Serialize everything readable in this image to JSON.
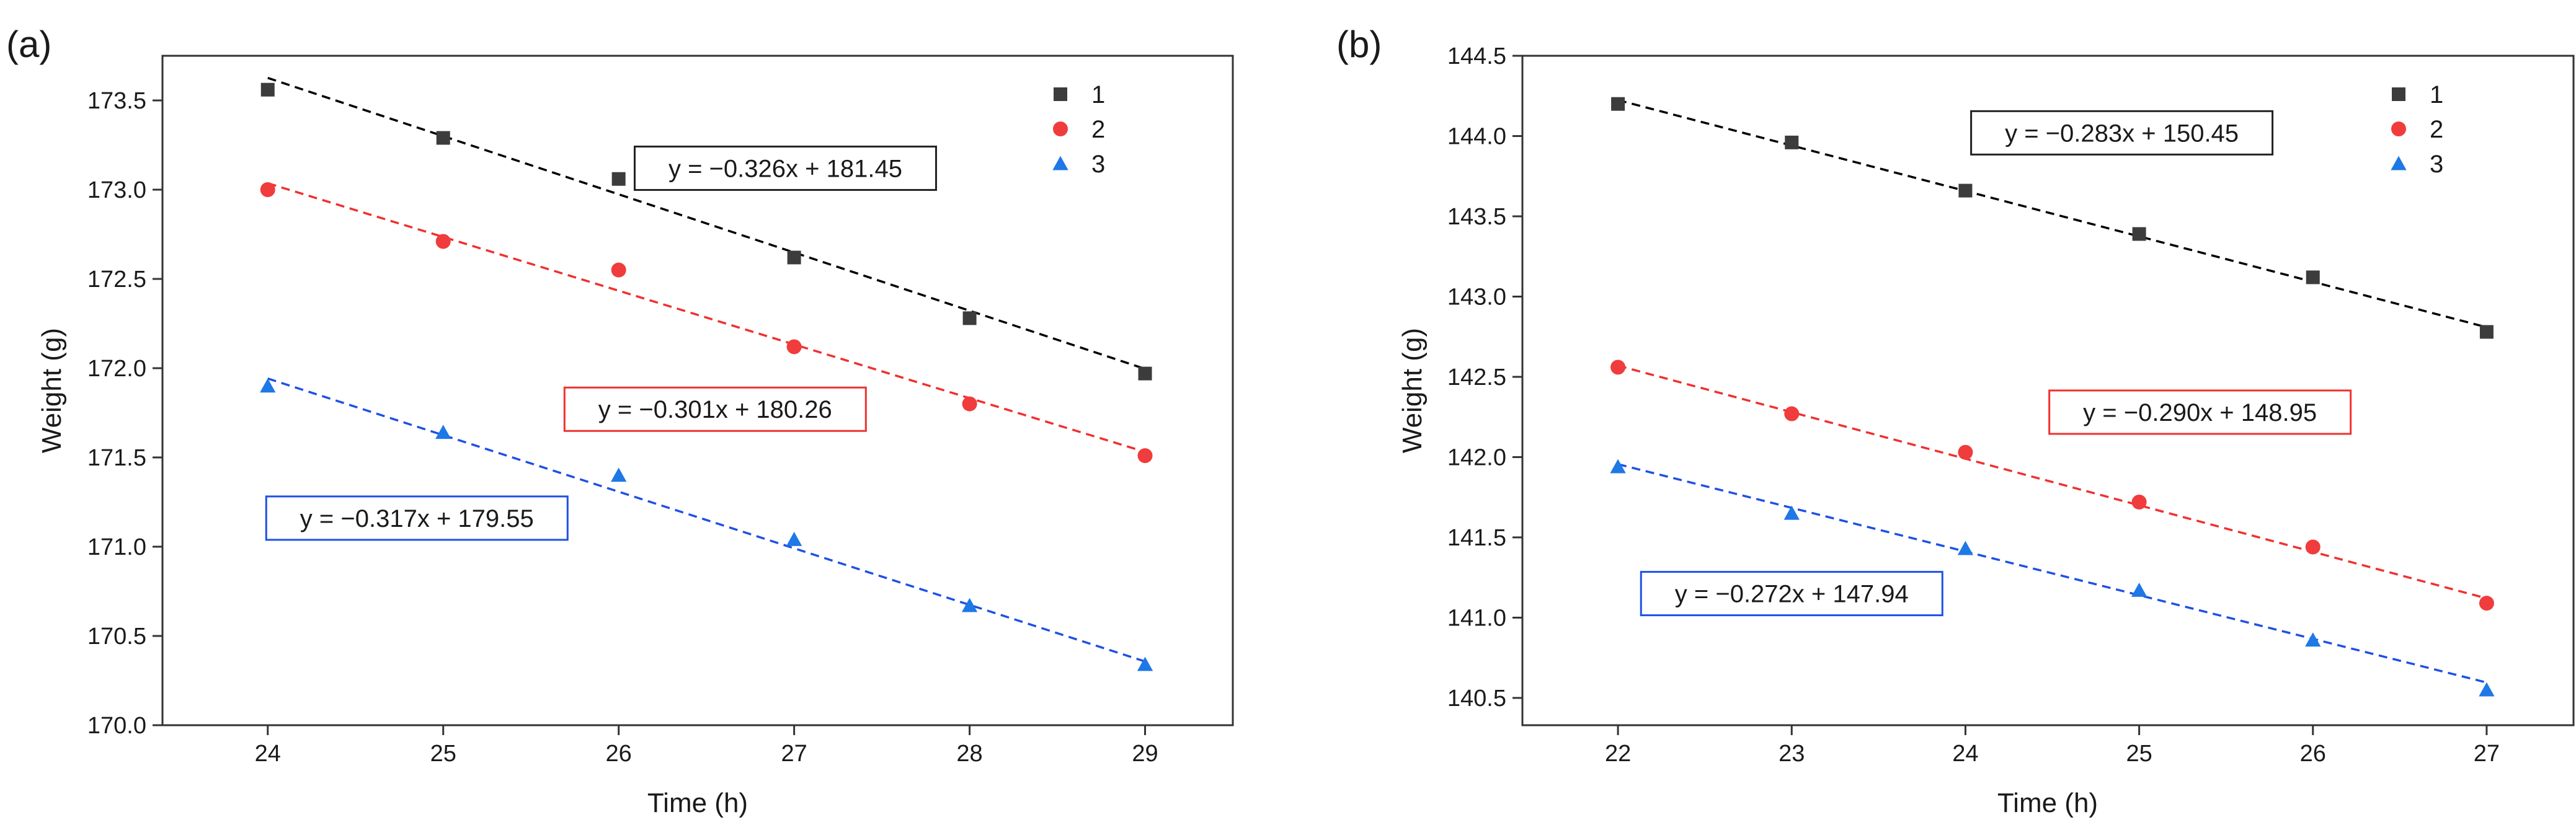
{
  "chart_data": [
    {
      "type": "scatter",
      "panel_label": "(a)",
      "xlabel": "Time (h)",
      "ylabel": "Weight (g)",
      "xlim": [
        23.4,
        29.5
      ],
      "ylim": [
        170.0,
        173.75
      ],
      "x_ticks": [
        24,
        25,
        26,
        27,
        28,
        29
      ],
      "y_ticks": [
        170.0,
        170.5,
        171.0,
        171.5,
        172.0,
        172.5,
        173.0,
        173.5
      ],
      "legend_position": "top-right",
      "series": [
        {
          "name": "1",
          "marker": "square",
          "color": "#3c3c3c",
          "fit_color": "#000000",
          "x": [
            24,
            25,
            26,
            27,
            28,
            29
          ],
          "y": [
            173.56,
            173.29,
            173.06,
            172.62,
            172.28,
            171.97
          ],
          "fit": {
            "slope": -0.326,
            "intercept": 181.45
          },
          "equation": "y = −0.326x + 181.45",
          "equation_anchor": {
            "x": 26.95,
            "y": 173.12
          }
        },
        {
          "name": "2",
          "marker": "circle",
          "color": "#f03c3c",
          "fit_color": "#f03030",
          "x": [
            24,
            25,
            26,
            27,
            28,
            29
          ],
          "y": [
            173.0,
            172.71,
            172.55,
            172.12,
            171.8,
            171.51
          ],
          "fit": {
            "slope": -0.301,
            "intercept": 180.26
          },
          "equation": "y = −0.301x + 180.26",
          "equation_anchor": {
            "x": 26.55,
            "y": 171.77
          }
        },
        {
          "name": "3",
          "marker": "triangle",
          "color": "#1e78e6",
          "fit_color": "#1e50e6",
          "x": [
            24,
            25,
            26,
            27,
            28,
            29
          ],
          "y": [
            171.9,
            171.64,
            171.4,
            171.04,
            170.67,
            170.34
          ],
          "fit": {
            "slope": -0.317,
            "intercept": 179.55
          },
          "equation": "y = −0.317x + 179.55",
          "equation_anchor": {
            "x": 24.85,
            "y": 171.16
          }
        }
      ]
    },
    {
      "type": "scatter",
      "panel_label": "(b)",
      "xlabel": "Time (h)",
      "ylabel": "Weight (g)",
      "xlim": [
        21.45,
        27.5
      ],
      "ylim": [
        140.33,
        144.5
      ],
      "x_ticks": [
        22,
        23,
        24,
        25,
        26,
        27
      ],
      "y_ticks": [
        140.5,
        141.0,
        141.5,
        142.0,
        142.5,
        143.0,
        143.5,
        144.0,
        144.5
      ],
      "legend_position": "top-right",
      "series": [
        {
          "name": "1",
          "marker": "square",
          "color": "#3c3c3c",
          "fit_color": "#000000",
          "x": [
            22,
            23,
            24,
            25,
            26,
            27
          ],
          "y": [
            144.2,
            143.96,
            143.66,
            143.39,
            143.12,
            142.78
          ],
          "fit": {
            "slope": -0.283,
            "intercept": 150.45
          },
          "equation": "y = −0.283x + 150.45",
          "equation_anchor": {
            "x": 24.9,
            "y": 144.02
          }
        },
        {
          "name": "2",
          "marker": "circle",
          "color": "#f03c3c",
          "fit_color": "#f03030",
          "x": [
            22,
            23,
            24,
            25,
            26,
            27
          ],
          "y": [
            142.56,
            142.27,
            142.03,
            141.72,
            141.44,
            141.09
          ],
          "fit": {
            "slope": -0.29,
            "intercept": 148.95
          },
          "equation": "y = −0.290x + 148.95",
          "equation_anchor": {
            "x": 25.35,
            "y": 142.28
          }
        },
        {
          "name": "3",
          "marker": "triangle",
          "color": "#1e78e6",
          "fit_color": "#1e50e6",
          "x": [
            22,
            23,
            24,
            25,
            26,
            27
          ],
          "y": [
            141.94,
            141.65,
            141.43,
            141.17,
            140.86,
            140.55
          ],
          "fit": {
            "slope": -0.272,
            "intercept": 147.94
          },
          "equation": "y = −0.272x + 147.94",
          "equation_anchor": {
            "x": 23.0,
            "y": 141.15
          }
        }
      ]
    }
  ]
}
